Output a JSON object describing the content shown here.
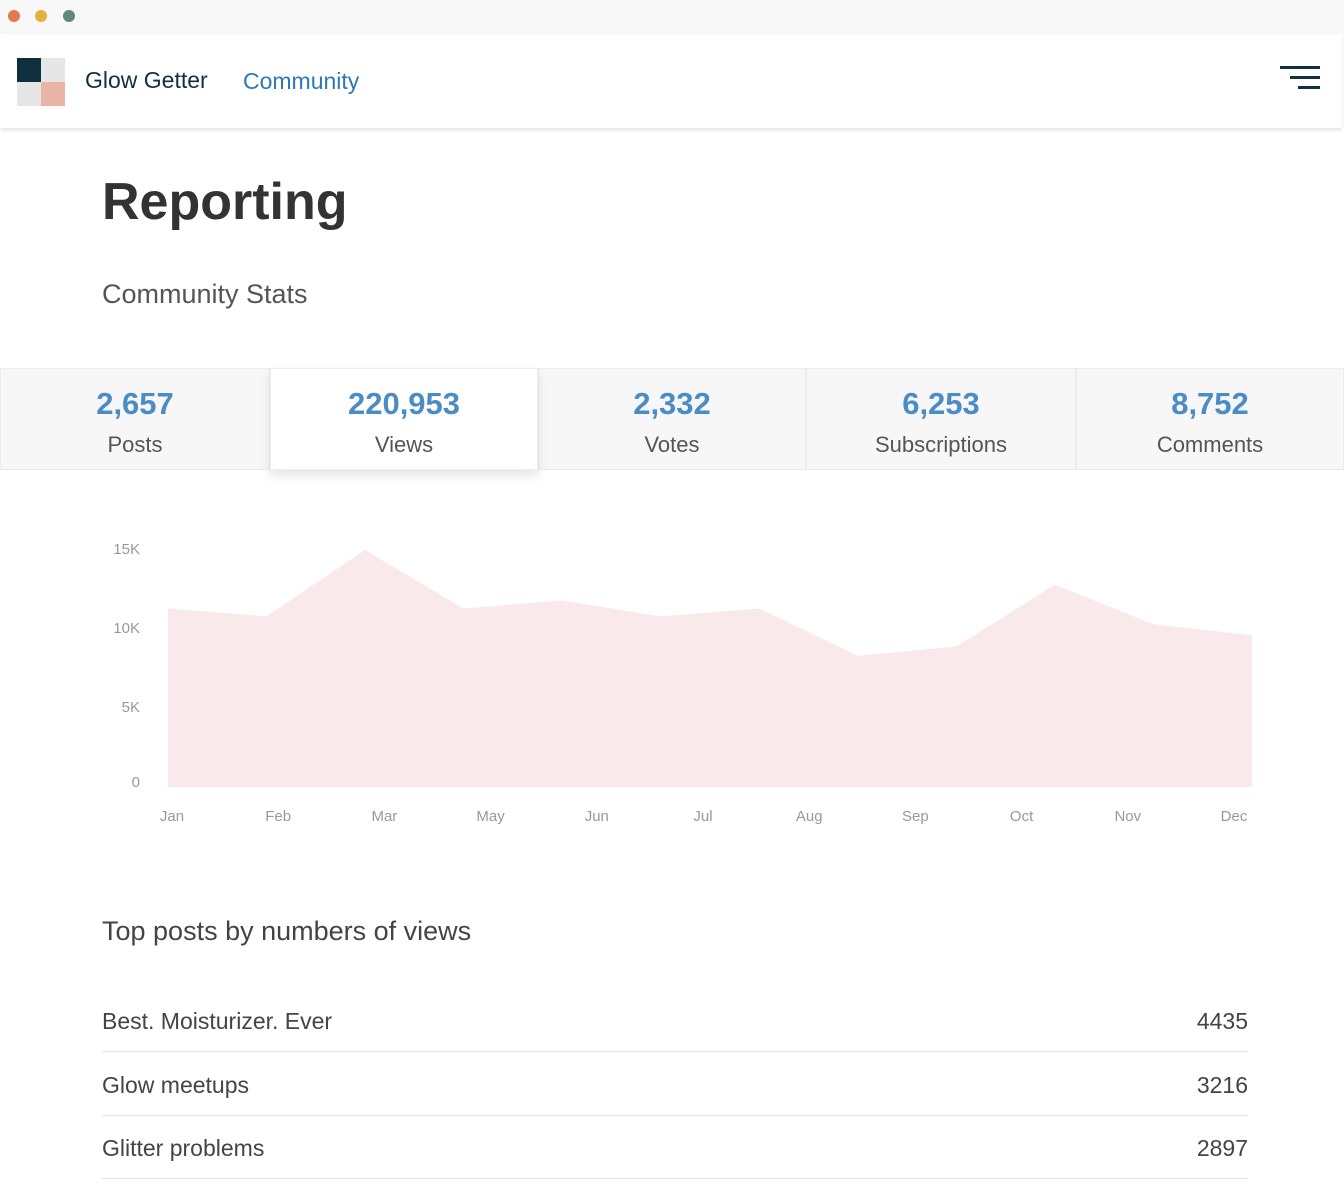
{
  "header": {
    "brand": "Glow Getter",
    "section": "Community"
  },
  "page": {
    "title": "Reporting",
    "subtitle": "Community Stats"
  },
  "stats": [
    {
      "value": "2,657",
      "label": "Posts"
    },
    {
      "value": "220,953",
      "label": "Views",
      "selected": true
    },
    {
      "value": "2,332",
      "label": "Votes"
    },
    {
      "value": "6,253",
      "label": "Subscriptions"
    },
    {
      "value": "8,752",
      "label": "Comments"
    }
  ],
  "chart_data": {
    "type": "area",
    "color": "#fae9ea",
    "x": [
      0,
      1,
      2,
      3,
      4,
      5,
      6,
      7,
      8,
      9,
      10,
      11
    ],
    "values": [
      11300,
      10800,
      15000,
      11300,
      11800,
      10800,
      11300,
      8300,
      8900,
      12800,
      10300,
      9600
    ],
    "xlim": [
      0,
      11
    ],
    "xticks": [
      {
        "value": 0,
        "label": "Jan"
      },
      {
        "value": 1.1,
        "label": "Feb"
      },
      {
        "value": 2.2,
        "label": "Mar"
      },
      {
        "value": 3.3,
        "label": "May"
      },
      {
        "value": 4.4,
        "label": "Jun"
      },
      {
        "value": 5.5,
        "label": "Jul"
      },
      {
        "value": 6.6,
        "label": "Aug"
      },
      {
        "value": 7.7,
        "label": "Sep"
      },
      {
        "value": 8.8,
        "label": "Oct"
      },
      {
        "value": 9.9,
        "label": "Nov"
      },
      {
        "value": 11,
        "label": "Dec"
      }
    ],
    "ylim": [
      0,
      15000
    ],
    "yticks": [
      0,
      {
        "value": 5000,
        "label": "5K"
      },
      {
        "value": 10000,
        "label": "10K"
      },
      {
        "value": 15000,
        "label": "15K"
      }
    ]
  },
  "top_posts": {
    "title": "Top posts by numbers of views",
    "rows": [
      [
        "Best. Moisturizer. Ever",
        "4435"
      ],
      [
        "Glow meetups",
        "3216"
      ],
      [
        "Glitter problems",
        "2897"
      ]
    ]
  }
}
